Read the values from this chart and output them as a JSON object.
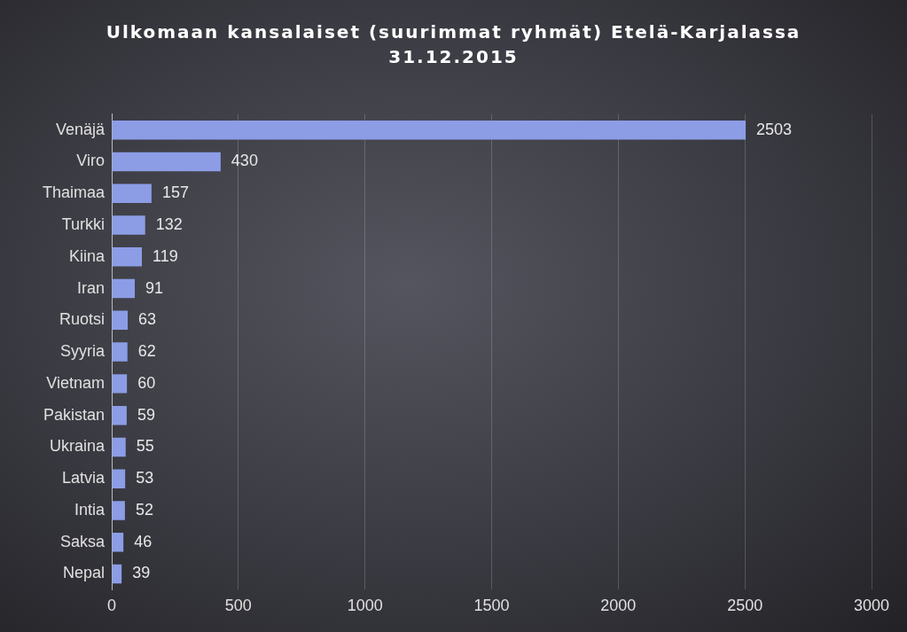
{
  "chart_data": {
    "type": "bar",
    "orientation": "horizontal",
    "title": "Ulkomaan kansalaiset (suurimmat ryhmät) Etelä-Karjalassa",
    "subtitle": "31.12.2015",
    "categories": [
      "Venäjä",
      "Viro",
      "Thaimaa",
      "Turkki",
      "Kiina",
      "Iran",
      "Ruotsi",
      "Syyria",
      "Vietnam",
      "Pakistan",
      "Ukraina",
      "Latvia",
      "Intia",
      "Saksa",
      "Nepal"
    ],
    "values": [
      2503,
      430,
      157,
      132,
      119,
      91,
      63,
      62,
      60,
      59,
      55,
      53,
      52,
      46,
      39
    ],
    "color": "#8c9de6",
    "xlim": [
      0,
      3000
    ],
    "xticks": [
      0,
      500,
      1000,
      1500,
      2000,
      2500,
      3000
    ],
    "grid": "x",
    "legend": false,
    "data_labels": true
  }
}
